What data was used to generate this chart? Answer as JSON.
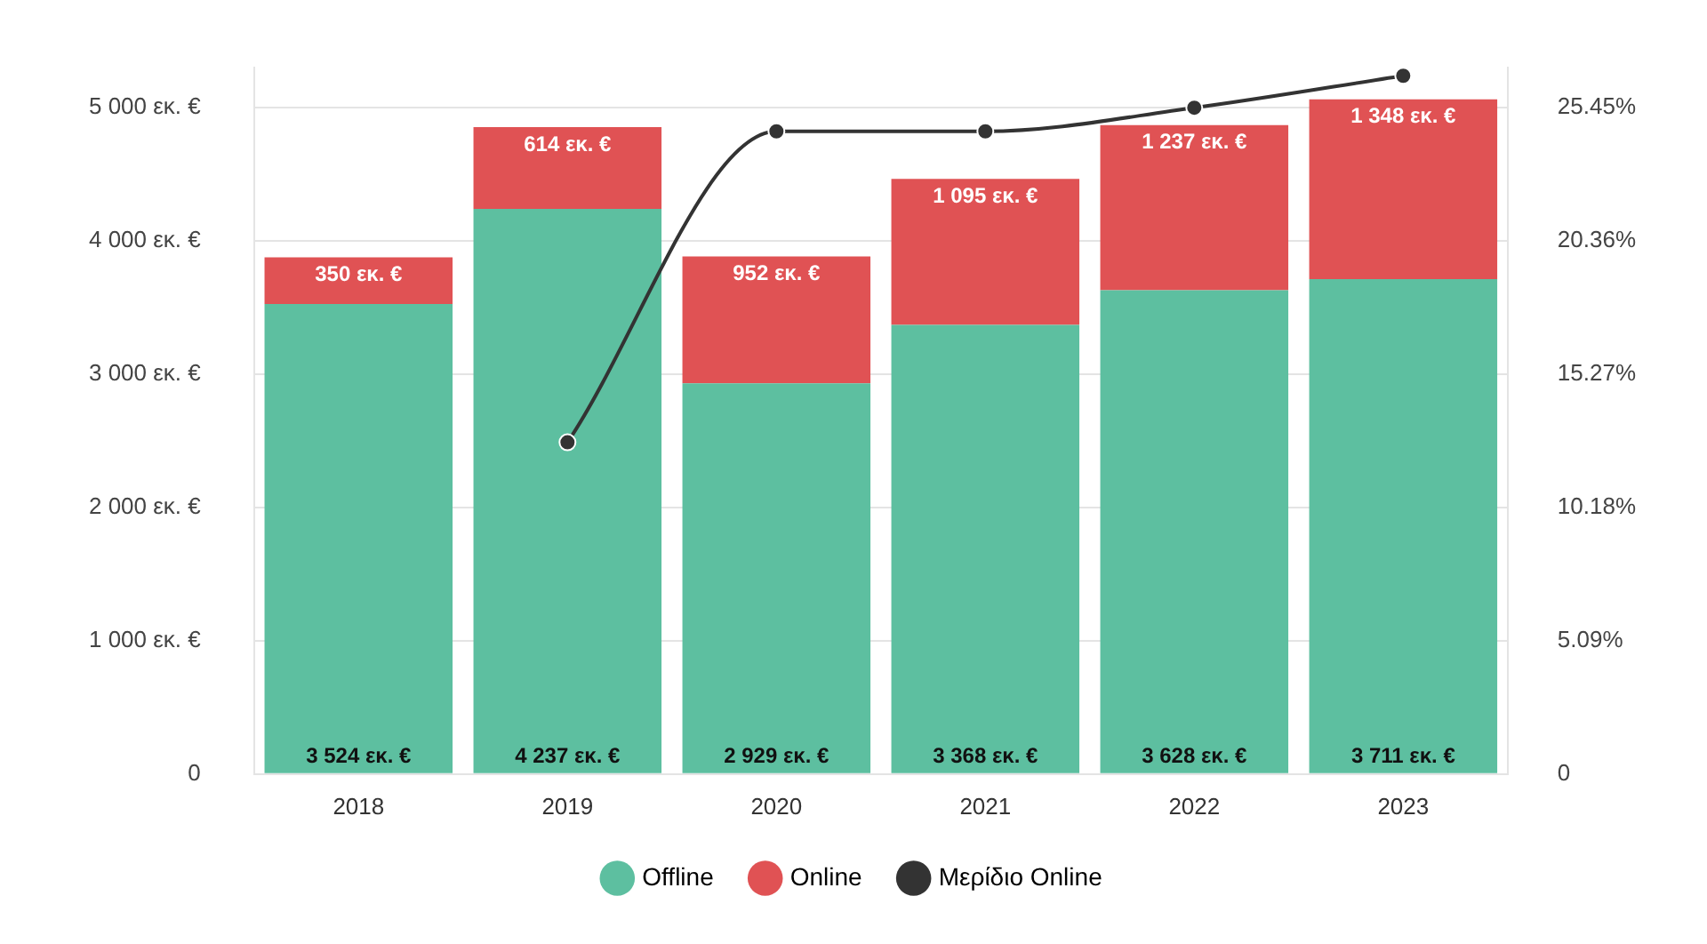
{
  "chart_data": {
    "type": "bar",
    "stacked": true,
    "categories": [
      "2018",
      "2019",
      "2020",
      "2021",
      "2022",
      "2023"
    ],
    "series": [
      {
        "name": "Offline",
        "color": "#5dbfa0",
        "values": [
          3524,
          4237,
          2929,
          3368,
          3628,
          3711
        ],
        "value_labels": [
          "3 524 εκ. €",
          "4 237 εκ. €",
          "2 929 εκ. €",
          "3 368 εκ. €",
          "3 628 εκ. €",
          "3 711 εκ. €"
        ]
      },
      {
        "name": "Online",
        "color": "#e05254",
        "values": [
          350,
          614,
          952,
          1095,
          1237,
          1348
        ],
        "value_labels": [
          "350 εκ. €",
          "614 εκ. €",
          "952 εκ. €",
          "1 095 εκ. €",
          "1 237 εκ. €",
          "1 348 εκ. €"
        ]
      },
      {
        "name": "Μερίδιο Online",
        "type": "line",
        "axis": "y2",
        "color": "#333333",
        "values": [
          null,
          12.66,
          24.53,
          24.53,
          25.43,
          26.65
        ]
      }
    ],
    "ylim": [
      0,
      5300
    ],
    "yticks": [
      {
        "value": 0,
        "label": "0"
      },
      {
        "value": 1000,
        "label": "1 000 εκ. €"
      },
      {
        "value": 2000,
        "label": "2 000 εκ. €"
      },
      {
        "value": 3000,
        "label": "3 000 εκ. €"
      },
      {
        "value": 4000,
        "label": "4 000 εκ. €"
      },
      {
        "value": 5000,
        "label": "5 000 εκ. €"
      }
    ],
    "y2lim": [
      0,
      26.977
    ],
    "y2ticks": [
      {
        "value": 0,
        "label": "0"
      },
      {
        "value": 5.09,
        "label": "5.09%"
      },
      {
        "value": 10.18,
        "label": "10.18%"
      },
      {
        "value": 15.27,
        "label": "15.27%"
      },
      {
        "value": 20.36,
        "label": "20.36%"
      },
      {
        "value": 25.45,
        "label": "25.45%"
      }
    ],
    "grid": "y",
    "legend": "bottom",
    "marker": "circle"
  }
}
